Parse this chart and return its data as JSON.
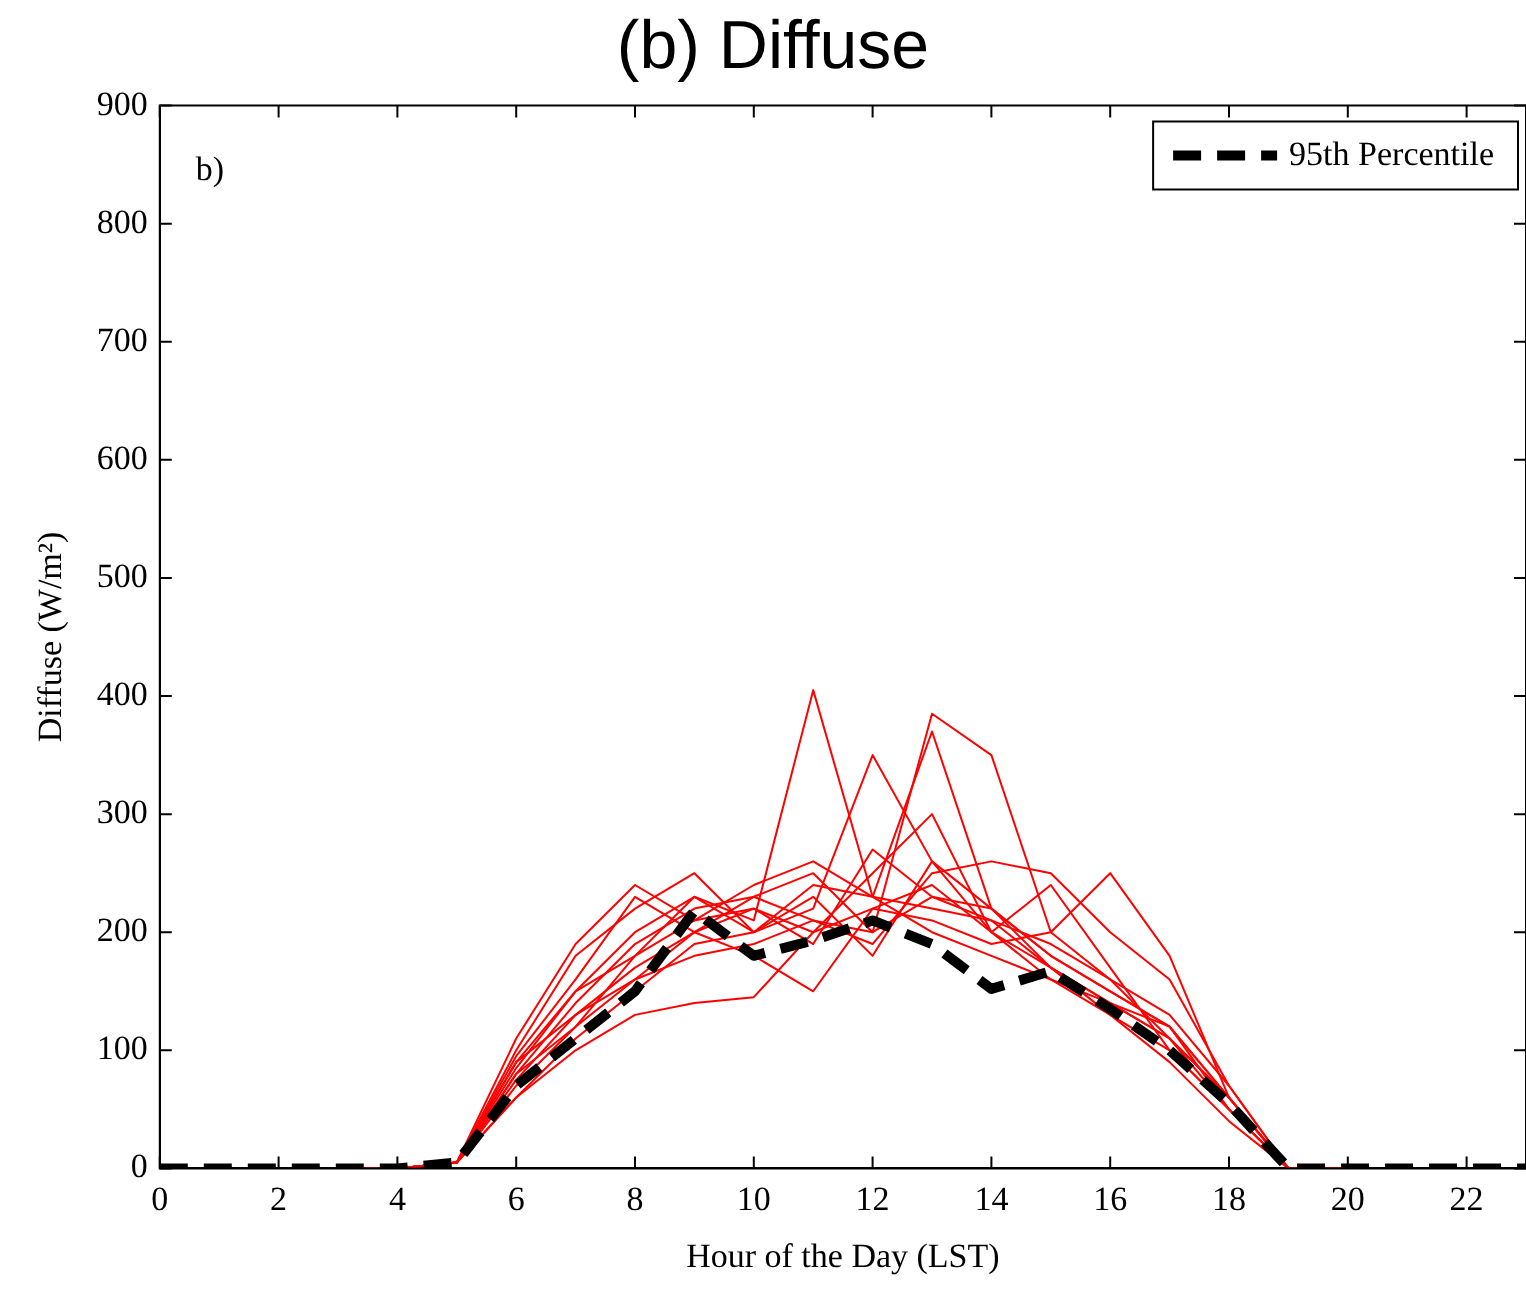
{
  "chart_data": {
    "type": "line",
    "title": "(b) Diffuse",
    "xlabel": "Hour of the Day (LST)",
    "ylabel": "Diffuse (W/m²)",
    "annotations": [
      "b)"
    ],
    "x": [
      0,
      1,
      2,
      3,
      4,
      5,
      6,
      7,
      8,
      9,
      10,
      11,
      12,
      13,
      14,
      15,
      16,
      17,
      18,
      19,
      20,
      21,
      22,
      23
    ],
    "xlim": [
      0,
      23
    ],
    "xticks": [
      0,
      2,
      4,
      6,
      8,
      10,
      12,
      14,
      16,
      18,
      20,
      22
    ],
    "ylim": [
      0,
      900
    ],
    "yticks": [
      0,
      100,
      200,
      300,
      400,
      500,
      600,
      700,
      800,
      900
    ],
    "grid": false,
    "legend": "top right",
    "marker": "none",
    "series": [
      {
        "color": "#ff0000",
        "values": [
          null,
          null,
          null,
          0,
          0,
          5,
          90,
          150,
          200,
          230,
          210,
          405,
          230,
          200,
          180,
          160,
          140,
          110,
          60,
          0,
          0,
          null,
          null,
          null
        ]
      },
      {
        "color": "#ff0000",
        "values": [
          null,
          null,
          null,
          0,
          0,
          5,
          100,
          180,
          220,
          250,
          200,
          220,
          350,
          260,
          220,
          180,
          150,
          120,
          60,
          0,
          0,
          null,
          null,
          null
        ]
      },
      {
        "color": "#ff0000",
        "values": [
          null,
          null,
          null,
          0,
          0,
          5,
          80,
          140,
          190,
          220,
          230,
          250,
          200,
          385,
          350,
          200,
          160,
          110,
          50,
          0,
          0,
          null,
          null,
          null
        ]
      },
      {
        "color": "#ff0000",
        "values": [
          null,
          null,
          null,
          0,
          0,
          5,
          60,
          110,
          150,
          190,
          200,
          240,
          230,
          370,
          220,
          170,
          130,
          100,
          50,
          0,
          0,
          null,
          null,
          null
        ]
      },
      {
        "color": "#ff0000",
        "values": [
          null,
          null,
          null,
          0,
          0,
          5,
          110,
          190,
          240,
          210,
          220,
          200,
          250,
          300,
          200,
          240,
          170,
          100,
          50,
          0,
          0,
          null,
          null,
          null
        ]
      },
      {
        "color": "#ff0000",
        "values": [
          null,
          null,
          null,
          0,
          0,
          5,
          70,
          120,
          160,
          200,
          230,
          210,
          190,
          250,
          260,
          250,
          200,
          160,
          70,
          0,
          0,
          null,
          null,
          null
        ]
      },
      {
        "color": "#ff0000",
        "values": [
          null,
          null,
          null,
          0,
          0,
          5,
          90,
          130,
          170,
          200,
          180,
          150,
          220,
          210,
          190,
          200,
          250,
          180,
          60,
          0,
          0,
          null,
          null,
          null
        ]
      },
      {
        "color": "#ff0000",
        "values": [
          null,
          null,
          null,
          0,
          0,
          5,
          60,
          100,
          130,
          140,
          145,
          200,
          220,
          240,
          200,
          170,
          140,
          120,
          60,
          0,
          0,
          null,
          null,
          null
        ]
      },
      {
        "color": "#ff0000",
        "values": [
          null,
          null,
          null,
          0,
          0,
          5,
          85,
          150,
          180,
          210,
          240,
          260,
          230,
          220,
          210,
          190,
          160,
          130,
          70,
          0,
          0,
          null,
          null,
          null
        ]
      },
      {
        "color": "#ff0000",
        "values": [
          null,
          null,
          null,
          0,
          0,
          5,
          75,
          130,
          160,
          180,
          190,
          210,
          200,
          230,
          220,
          180,
          150,
          120,
          50,
          0,
          0,
          null,
          null,
          null
        ]
      },
      {
        "color": "#ff0000",
        "values": [
          null,
          null,
          null,
          0,
          0,
          5,
          95,
          160,
          230,
          200,
          220,
          190,
          270,
          230,
          210,
          170,
          140,
          110,
          60,
          0,
          0,
          null,
          null,
          null
        ]
      },
      {
        "color": "#ff0000",
        "values": [
          null,
          null,
          null,
          0,
          0,
          5,
          80,
          120,
          180,
          230,
          200,
          230,
          180,
          260,
          200,
          160,
          130,
          90,
          40,
          0,
          0,
          null,
          null,
          null
        ]
      },
      {
        "name": "95th Percentile",
        "color": "#000000",
        "line_style": "dashed",
        "values": [
          0,
          0,
          0,
          0,
          0,
          5,
          70,
          110,
          150,
          218,
          180,
          193,
          210,
          190,
          152,
          167,
          135,
          100,
          55,
          0,
          0,
          0,
          0,
          0
        ]
      }
    ]
  }
}
